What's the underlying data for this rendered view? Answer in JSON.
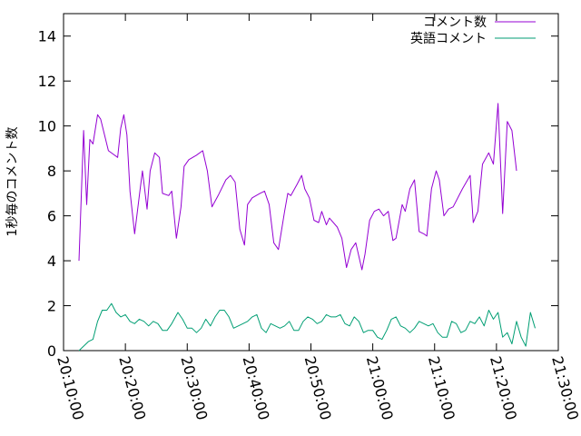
{
  "chart_data": {
    "type": "line",
    "ylabel": "1秒毎のコメント数",
    "xlabel": "",
    "ylim": [
      0,
      15
    ],
    "xlim": [
      "20:10:00",
      "21:30:00"
    ],
    "yticks": [
      0,
      2,
      4,
      6,
      8,
      10,
      12,
      14
    ],
    "xticks": [
      "20:10:00",
      "20:20:00",
      "20:30:00",
      "20:40:00",
      "20:50:00",
      "21:00:00",
      "21:10:00",
      "21:20:00",
      "21:30:00"
    ],
    "legend_position": "top-right",
    "grid": false,
    "series": [
      {
        "name": "コメント数",
        "color": "#9400d3",
        "points": [
          [
            "20:12:30",
            4.0
          ],
          [
            "20:13:15",
            9.8
          ],
          [
            "20:13:45",
            6.5
          ],
          [
            "20:14:15",
            9.4
          ],
          [
            "20:14:45",
            9.2
          ],
          [
            "20:15:30",
            10.5
          ],
          [
            "20:16:00",
            10.3
          ],
          [
            "20:17:15",
            8.9
          ],
          [
            "20:18:45",
            8.6
          ],
          [
            "20:19:15",
            9.9
          ],
          [
            "20:19:45",
            10.5
          ],
          [
            "20:20:15",
            9.6
          ],
          [
            "20:20:45",
            7.1
          ],
          [
            "20:21:30",
            5.2
          ],
          [
            "20:22:15",
            6.9
          ],
          [
            "20:22:45",
            8.0
          ],
          [
            "20:23:30",
            6.3
          ],
          [
            "20:24:00",
            8.0
          ],
          [
            "20:24:45",
            8.8
          ],
          [
            "20:25:30",
            8.6
          ],
          [
            "20:26:00",
            7.0
          ],
          [
            "20:27:00",
            6.9
          ],
          [
            "20:27:30",
            7.1
          ],
          [
            "20:28:15",
            5.0
          ],
          [
            "20:29:00",
            6.4
          ],
          [
            "20:29:30",
            8.2
          ],
          [
            "20:30:15",
            8.5
          ],
          [
            "20:31:30",
            8.7
          ],
          [
            "20:32:30",
            8.9
          ],
          [
            "20:33:15",
            8.0
          ],
          [
            "20:34:00",
            6.4
          ],
          [
            "20:35:00",
            6.9
          ],
          [
            "20:36:15",
            7.6
          ],
          [
            "20:37:00",
            7.8
          ],
          [
            "20:37:45",
            7.5
          ],
          [
            "20:38:30",
            5.4
          ],
          [
            "20:39:15",
            4.7
          ],
          [
            "20:39:45",
            6.5
          ],
          [
            "20:40:30",
            6.8
          ],
          [
            "20:41:45",
            7.0
          ],
          [
            "20:42:30",
            7.1
          ],
          [
            "20:43:15",
            6.5
          ],
          [
            "20:44:00",
            4.8
          ],
          [
            "20:44:45",
            4.5
          ],
          [
            "20:45:45",
            6.2
          ],
          [
            "20:46:15",
            7.0
          ],
          [
            "20:46:45",
            6.9
          ],
          [
            "20:47:45",
            7.4
          ],
          [
            "20:48:30",
            7.8
          ],
          [
            "20:49:00",
            7.2
          ],
          [
            "20:49:45",
            6.8
          ],
          [
            "20:50:30",
            5.8
          ],
          [
            "20:51:15",
            5.7
          ],
          [
            "20:51:45",
            6.2
          ],
          [
            "20:52:30",
            5.6
          ],
          [
            "20:53:00",
            5.9
          ],
          [
            "20:54:15",
            5.5
          ],
          [
            "20:55:00",
            5.0
          ],
          [
            "20:55:45",
            3.7
          ],
          [
            "20:56:30",
            4.5
          ],
          [
            "20:57:15",
            4.8
          ],
          [
            "20:57:45",
            4.2
          ],
          [
            "20:58:15",
            3.6
          ],
          [
            "20:58:45",
            4.3
          ],
          [
            "20:59:30",
            5.8
          ],
          [
            "21:00:15",
            6.2
          ],
          [
            "21:01:00",
            6.3
          ],
          [
            "21:01:45",
            6.0
          ],
          [
            "21:02:30",
            6.2
          ],
          [
            "21:03:15",
            4.9
          ],
          [
            "21:03:45",
            5.0
          ],
          [
            "21:04:45",
            6.5
          ],
          [
            "21:05:15",
            6.2
          ],
          [
            "21:06:00",
            7.2
          ],
          [
            "21:06:45",
            7.6
          ],
          [
            "21:07:30",
            5.3
          ],
          [
            "21:08:15",
            5.2
          ],
          [
            "21:08:45",
            5.1
          ],
          [
            "21:09:30",
            7.2
          ],
          [
            "21:10:15",
            8.0
          ],
          [
            "21:10:45",
            7.6
          ],
          [
            "21:11:30",
            6.0
          ],
          [
            "21:12:15",
            6.3
          ],
          [
            "21:13:00",
            6.4
          ],
          [
            "21:14:30",
            7.2
          ],
          [
            "21:15:45",
            7.8
          ],
          [
            "21:16:15",
            5.7
          ],
          [
            "21:17:00",
            6.2
          ],
          [
            "21:17:45",
            8.3
          ],
          [
            "21:18:45",
            8.8
          ],
          [
            "21:19:30",
            8.3
          ],
          [
            "21:20:15",
            11.0
          ],
          [
            "21:21:00",
            6.1
          ],
          [
            "21:21:45",
            10.2
          ],
          [
            "21:22:30",
            9.8
          ],
          [
            "21:23:15",
            8.0
          ]
        ]
      },
      {
        "name": "英語コメント",
        "color": "#009e73",
        "points": [
          [
            "20:12:30",
            0.0
          ],
          [
            "20:13:15",
            0.2
          ],
          [
            "20:14:00",
            0.4
          ],
          [
            "20:14:45",
            0.5
          ],
          [
            "20:15:30",
            1.3
          ],
          [
            "20:16:15",
            1.8
          ],
          [
            "20:17:00",
            1.8
          ],
          [
            "20:17:45",
            2.1
          ],
          [
            "20:18:30",
            1.7
          ],
          [
            "20:19:15",
            1.5
          ],
          [
            "20:20:00",
            1.6
          ],
          [
            "20:20:45",
            1.3
          ],
          [
            "20:21:30",
            1.2
          ],
          [
            "20:22:15",
            1.4
          ],
          [
            "20:23:00",
            1.3
          ],
          [
            "20:23:45",
            1.1
          ],
          [
            "20:24:30",
            1.3
          ],
          [
            "20:25:15",
            1.2
          ],
          [
            "20:26:00",
            0.9
          ],
          [
            "20:26:45",
            0.9
          ],
          [
            "20:27:30",
            1.2
          ],
          [
            "20:28:30",
            1.7
          ],
          [
            "20:29:15",
            1.4
          ],
          [
            "20:30:00",
            1.0
          ],
          [
            "20:30:45",
            1.0
          ],
          [
            "20:31:30",
            0.8
          ],
          [
            "20:32:15",
            1.0
          ],
          [
            "20:33:00",
            1.4
          ],
          [
            "20:33:45",
            1.1
          ],
          [
            "20:34:30",
            1.5
          ],
          [
            "20:35:15",
            1.8
          ],
          [
            "20:36:00",
            1.8
          ],
          [
            "20:36:45",
            1.5
          ],
          [
            "20:37:30",
            1.0
          ],
          [
            "20:38:15",
            1.1
          ],
          [
            "20:39:00",
            1.2
          ],
          [
            "20:39:45",
            1.3
          ],
          [
            "20:40:30",
            1.5
          ],
          [
            "20:41:15",
            1.6
          ],
          [
            "20:42:00",
            1.0
          ],
          [
            "20:42:45",
            0.8
          ],
          [
            "20:43:30",
            1.2
          ],
          [
            "20:44:15",
            1.1
          ],
          [
            "20:45:00",
            1.0
          ],
          [
            "20:45:45",
            1.1
          ],
          [
            "20:46:30",
            1.3
          ],
          [
            "20:47:15",
            0.9
          ],
          [
            "20:48:00",
            0.9
          ],
          [
            "20:48:45",
            1.3
          ],
          [
            "20:49:30",
            1.5
          ],
          [
            "20:50:15",
            1.4
          ],
          [
            "20:51:00",
            1.2
          ],
          [
            "20:51:45",
            1.3
          ],
          [
            "20:52:30",
            1.6
          ],
          [
            "20:53:15",
            1.5
          ],
          [
            "20:54:00",
            1.5
          ],
          [
            "20:54:45",
            1.6
          ],
          [
            "20:55:30",
            1.2
          ],
          [
            "20:56:15",
            1.1
          ],
          [
            "20:57:00",
            1.5
          ],
          [
            "20:57:45",
            1.3
          ],
          [
            "20:58:30",
            0.8
          ],
          [
            "20:59:15",
            0.9
          ],
          [
            "21:00:00",
            0.9
          ],
          [
            "21:00:45",
            0.6
          ],
          [
            "21:01:30",
            0.5
          ],
          [
            "21:02:15",
            0.9
          ],
          [
            "21:03:00",
            1.4
          ],
          [
            "21:03:45",
            1.5
          ],
          [
            "21:04:30",
            1.1
          ],
          [
            "21:05:15",
            1.0
          ],
          [
            "21:06:00",
            0.8
          ],
          [
            "21:06:45",
            1.0
          ],
          [
            "21:07:30",
            1.3
          ],
          [
            "21:08:15",
            1.2
          ],
          [
            "21:09:00",
            1.1
          ],
          [
            "21:09:45",
            1.2
          ],
          [
            "21:10:30",
            0.8
          ],
          [
            "21:11:15",
            0.6
          ],
          [
            "21:12:00",
            0.6
          ],
          [
            "21:12:45",
            1.3
          ],
          [
            "21:13:30",
            1.2
          ],
          [
            "21:14:15",
            0.8
          ],
          [
            "21:15:00",
            0.9
          ],
          [
            "21:15:45",
            1.3
          ],
          [
            "21:16:30",
            1.2
          ],
          [
            "21:17:15",
            1.5
          ],
          [
            "21:18:00",
            1.1
          ],
          [
            "21:18:45",
            1.8
          ],
          [
            "21:19:30",
            1.4
          ],
          [
            "21:20:15",
            1.7
          ],
          [
            "21:21:00",
            0.6
          ],
          [
            "21:21:45",
            0.8
          ],
          [
            "21:22:30",
            0.3
          ],
          [
            "21:23:15",
            1.3
          ],
          [
            "21:24:00",
            0.6
          ],
          [
            "21:24:45",
            0.2
          ],
          [
            "21:25:30",
            1.7
          ],
          [
            "21:26:15",
            1.0
          ]
        ]
      }
    ]
  }
}
